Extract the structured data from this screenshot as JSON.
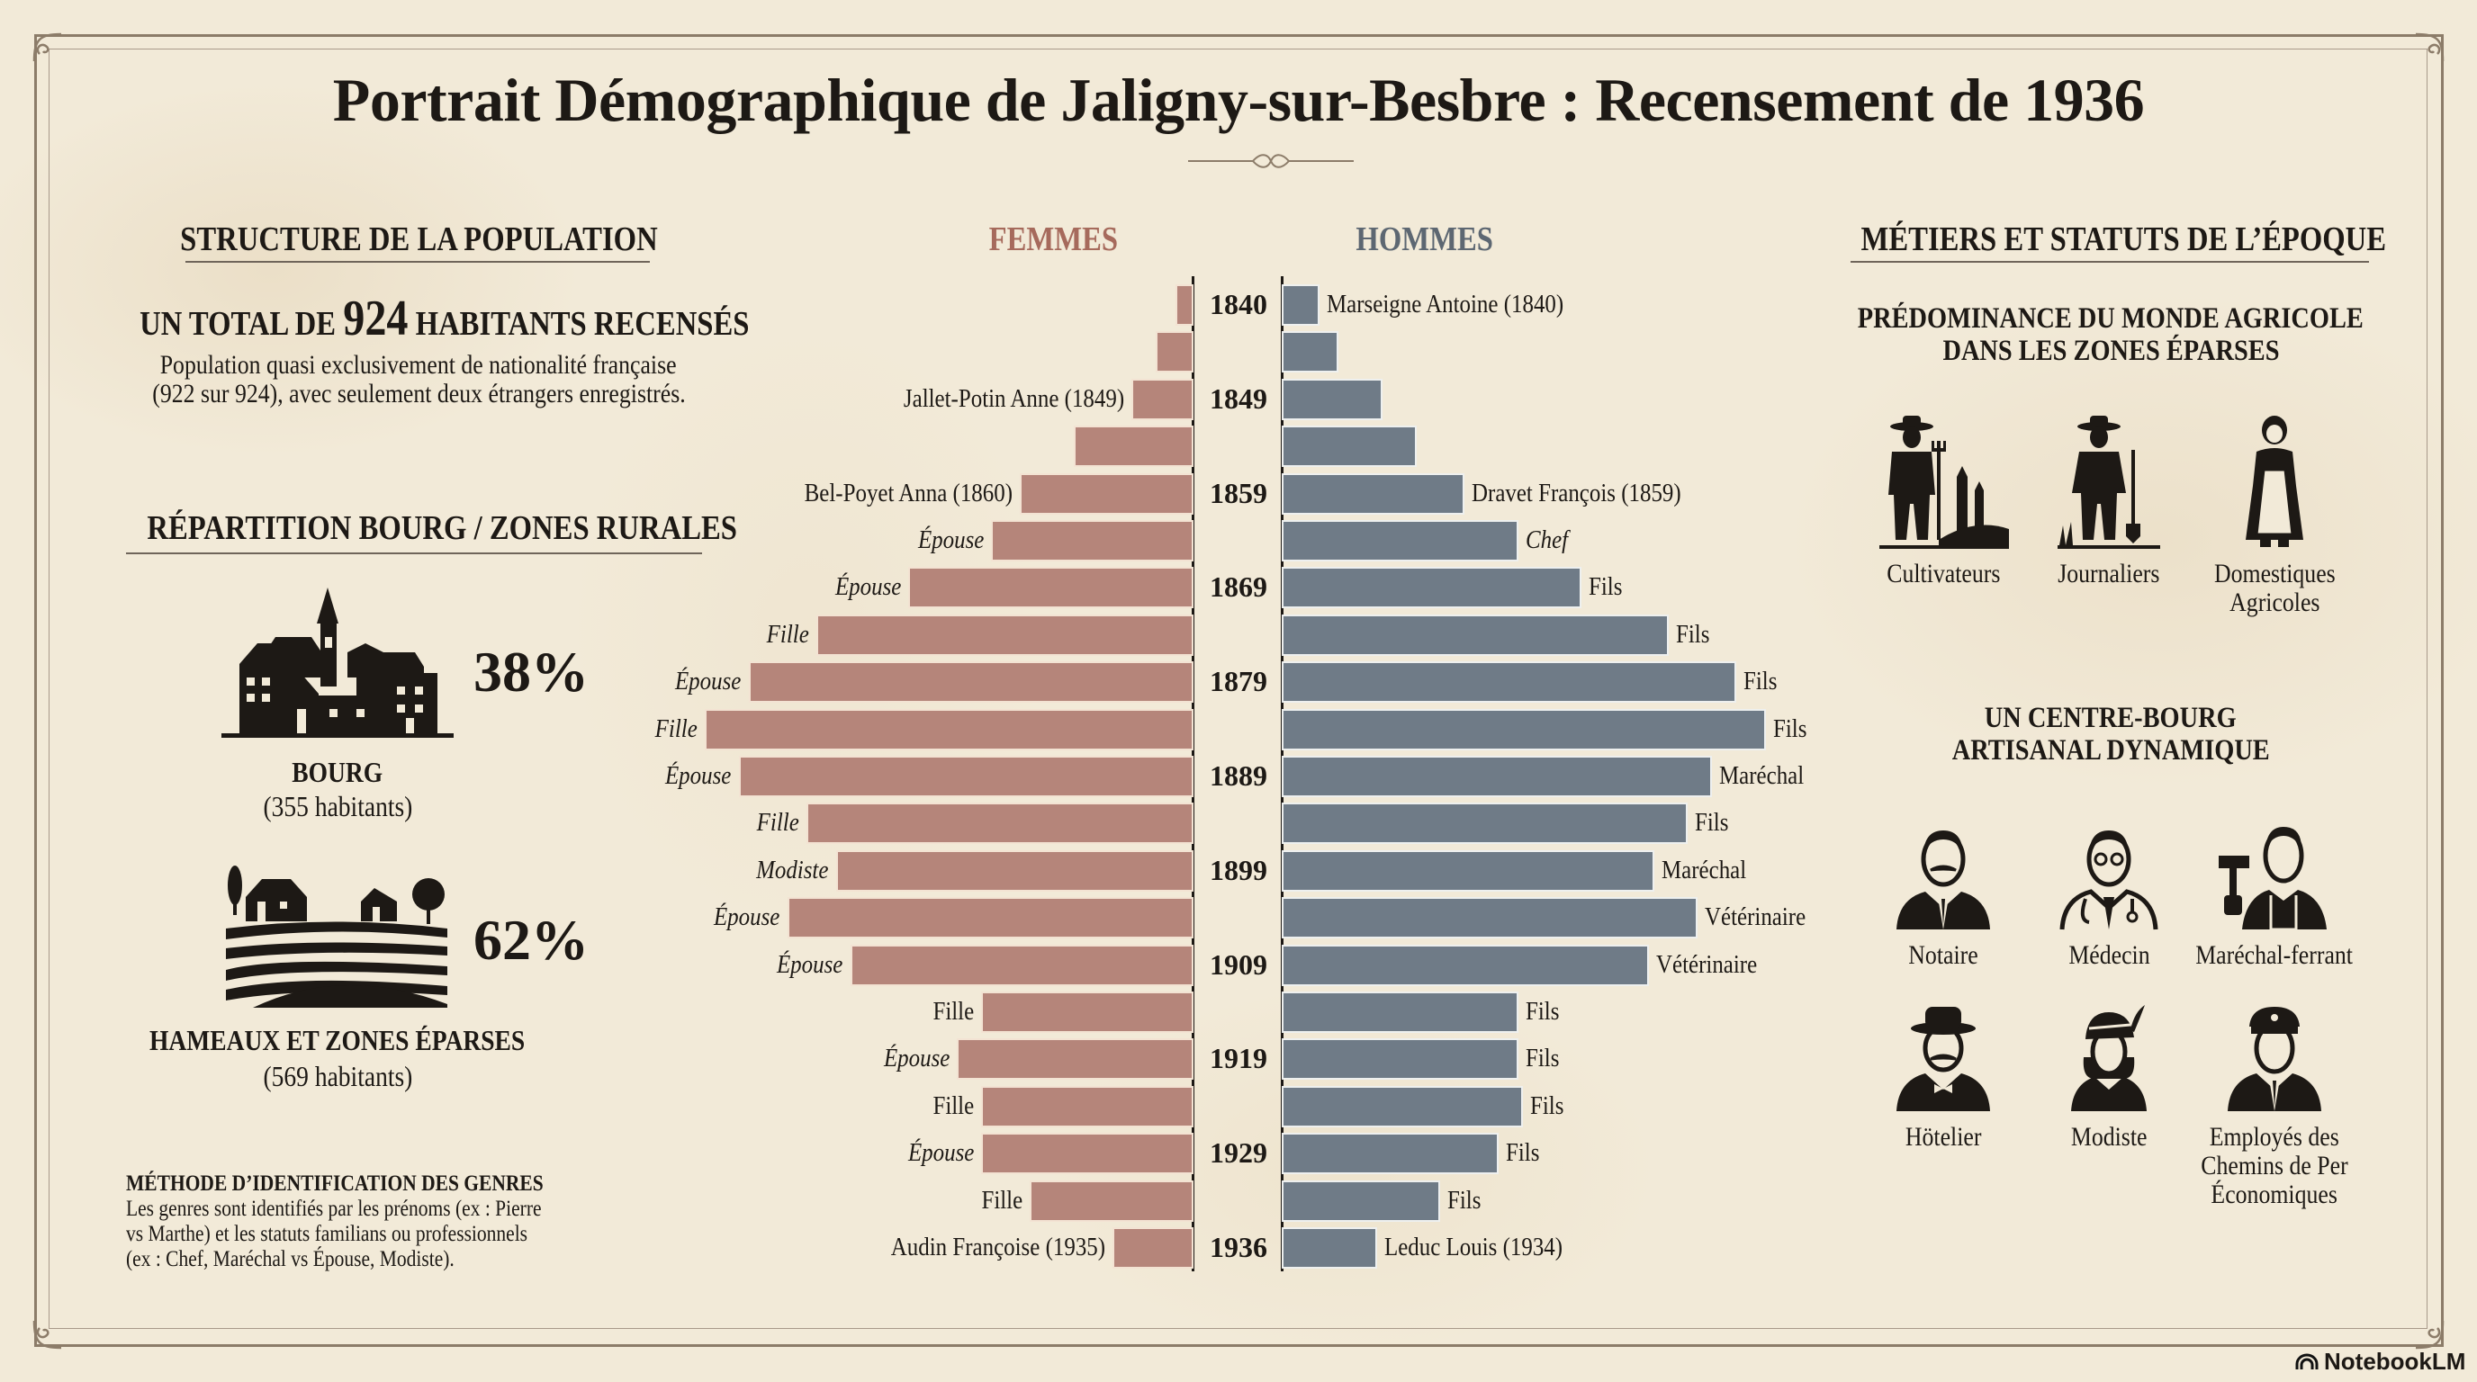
{
  "title": "Portrait Démographique de Jaligny-sur-Besbre : Recensement de 1936",
  "left": {
    "structure_heading": "STRUCTURE DE LA POPULATION",
    "total_prefix": "UN TOTAL DE",
    "total_value": "924",
    "total_suffix": "HABITANTS RECENSÉS",
    "description_lines": [
      "Population quasi exclusivement de nationalité française",
      "(922 sur 924), avec seulement deux étrangers enregistrés."
    ],
    "repartition_heading": "RÉPARTITION BOURG / ZONES RURALES",
    "bourg": {
      "percent": "38%",
      "label": "BOURG",
      "count": "(355 habitants)",
      "icon": "village-icon"
    },
    "hameaux": {
      "percent": "62%",
      "label": "HAMEAUX ET ZONES ÉPARSES",
      "count": "(569 habitants)",
      "icon": "farmland-icon"
    },
    "method": {
      "heading": "MÉTHODE D’IDENTIFICATION DES GENRES",
      "lines": [
        "Les genres sont identifiés par les prénoms (ex : Pierre",
        "vs Marthe) et les statuts familians ou professionnels",
        "(ex : Chef, Maréchal vs Épouse, Modiste)."
      ]
    }
  },
  "chart_data": {
    "type": "bar",
    "orientation": "horizontal population pyramid",
    "title": "",
    "xlabel": "",
    "ylabel": "",
    "grid": false,
    "year_labels": [
      "1840",
      "",
      "1849",
      "",
      "1859",
      "",
      "1869",
      "",
      "1879",
      "",
      "1889",
      "",
      "1899",
      "",
      "1909",
      "",
      "1919",
      "",
      "1929",
      "",
      "1936"
    ],
    "series": [
      {
        "name": "FEMMES",
        "color": "#b5857a",
        "header_color": "#a66a5c",
        "values": [
          3,
          7,
          12,
          24,
          35,
          41,
          58,
          77,
          91,
          100,
          93,
          79,
          73,
          83,
          70,
          43,
          48,
          43,
          43,
          33,
          16
        ],
        "labels": [
          "",
          "",
          "Jallet-Potin Anne (1849)",
          "",
          "Bel-Poyet Anna (1860)",
          "Épouse",
          "Épouse",
          "Fille",
          "Épouse",
          "Fille",
          "Épouse",
          "Fille",
          "Modiste",
          "Épouse",
          "Épouse",
          "Fille",
          "Épouse",
          "Fille",
          "Épouse",
          "Fille",
          "Audin Françoise (1935)"
        ]
      },
      {
        "name": "HOMMES",
        "color": "#6f7b87",
        "header_color": "#5d6772",
        "values": [
          7,
          11,
          20,
          27,
          37,
          48,
          61,
          79,
          93,
          99,
          88,
          83,
          76,
          85,
          75,
          48,
          48,
          49,
          44,
          32,
          19
        ],
        "labels": [
          "Marseigne Antoine (1840)",
          "",
          "",
          "",
          "Dravet François (1859)",
          "Chef",
          "Fils",
          "Fils",
          "Fils",
          "Fils",
          "Maréchal",
          "Fils",
          "Maréchal",
          "Vétérinaire",
          "Vétérinaire",
          "Fils",
          "Fils",
          "Fils",
          "Fils",
          "Fils",
          "Leduc Louis (1934)"
        ]
      }
    ]
  },
  "right": {
    "heading": "MÉTIERS ET STATUTS DE L’ÉPOQUE",
    "agri_heading_lines": [
      "PRÉDOMINANCE DU MONDE AGRICOLE",
      "DANS LES ZONES ÉPARSES"
    ],
    "agri": [
      {
        "label": "Cultivateurs",
        "icon": "farmer-pitchfork-icon"
      },
      {
        "label": "Journaliers",
        "icon": "laborer-shovel-icon"
      },
      {
        "label_lines": [
          "Domestiques",
          "Agricoles"
        ],
        "icon": "maid-apron-icon"
      }
    ],
    "bourg_heading_lines": [
      "UN CENTRE-BOURG",
      "ARTISANAL DYNAMIQUE"
    ],
    "bourg_jobs": [
      {
        "label": "Notaire",
        "icon": "notary-icon"
      },
      {
        "label": "Médecin",
        "icon": "doctor-icon"
      },
      {
        "label": "Maréchal-ferrant",
        "icon": "blacksmith-icon"
      },
      {
        "label": "Hötelier",
        "icon": "hotelier-icon"
      },
      {
        "label": "Modiste",
        "icon": "milliner-icon"
      },
      {
        "label_lines": [
          "Employés des",
          "Chemins de Per",
          "Économiques"
        ],
        "icon": "railway-employee-icon"
      }
    ]
  },
  "footer": {
    "brand": "NotebookLM"
  }
}
